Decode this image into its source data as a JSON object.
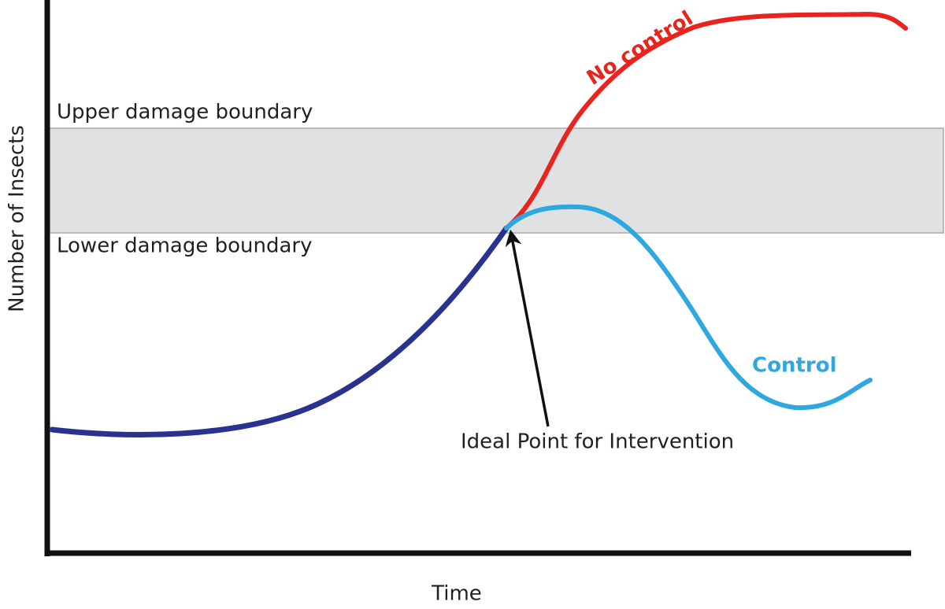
{
  "axes": {
    "y_label": "Number of Insects",
    "x_label": "Time"
  },
  "boundaries": {
    "upper": "Upper damage boundary",
    "lower": "Lower damage boundary"
  },
  "curves": {
    "no_control": "No control",
    "control": "Control"
  },
  "annotation": "Ideal Point for Intervention"
}
